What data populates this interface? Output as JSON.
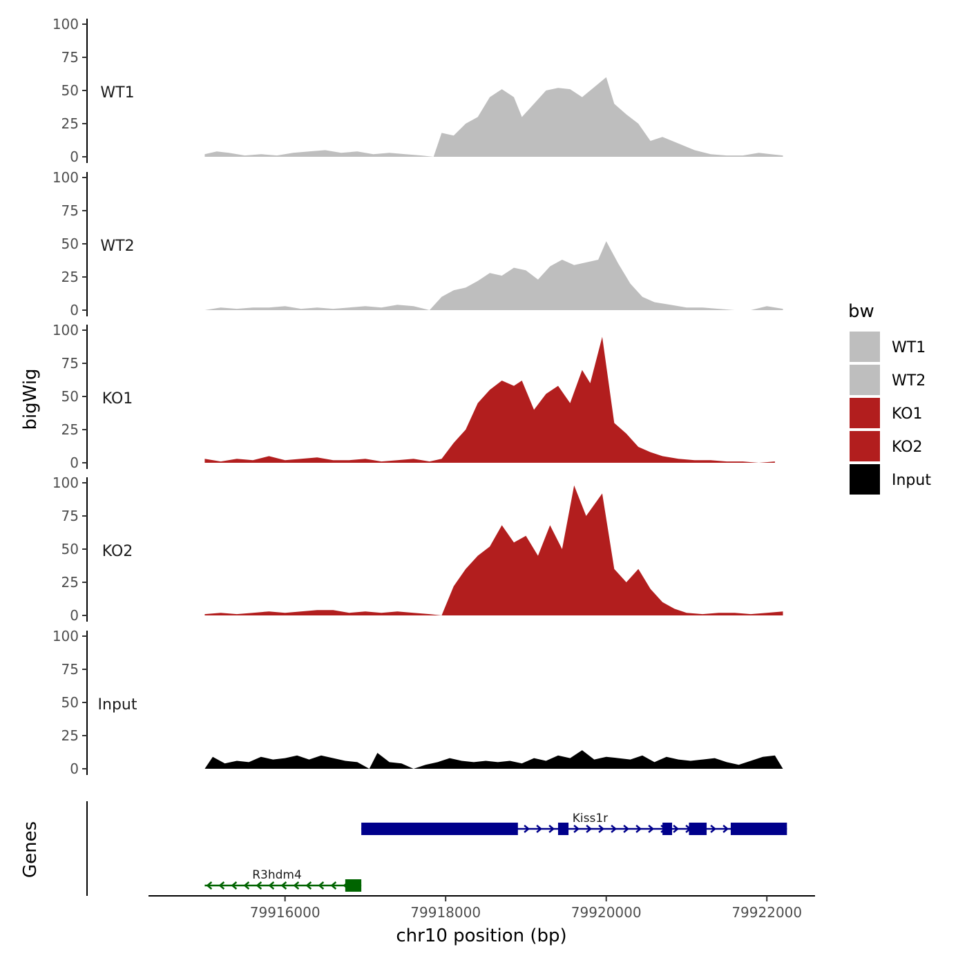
{
  "chart_data": {
    "type": "area",
    "ylabel": "bigWig",
    "xlabel": "chr10 position (bp)",
    "genes_panel_label": "Genes",
    "xlim": [
      79914300,
      79922600
    ],
    "x_ticks": [
      79916000,
      79918000,
      79920000,
      79922000
    ],
    "x_tick_labels": [
      "79916000",
      "79918000",
      "79920000",
      "79922000"
    ],
    "ylim": [
      0,
      100
    ],
    "y_ticks": [
      0,
      25,
      50,
      75,
      100
    ],
    "y_tick_labels": [
      "0",
      "25",
      "50",
      "75",
      "100"
    ],
    "legend": {
      "title": "bw",
      "placement": "right",
      "entries": [
        {
          "label": "WT1",
          "color": "#bebebe"
        },
        {
          "label": "WT2",
          "color": "#bebebe"
        },
        {
          "label": "KO1",
          "color": "#b21e1e"
        },
        {
          "label": "KO2",
          "color": "#b21e1e"
        },
        {
          "label": "Input",
          "color": "#000000"
        }
      ]
    },
    "series": [
      {
        "name": "WT1",
        "color": "#bebebe",
        "x": [
          79915000,
          79915150,
          79915300,
          79915500,
          79915700,
          79915900,
          79916100,
          79916300,
          79916500,
          79916700,
          79916900,
          79917100,
          79917300,
          79917500,
          79917700,
          79917850,
          79917950,
          79918100,
          79918250,
          79918400,
          79918550,
          79918700,
          79918850,
          79918950,
          79919100,
          79919250,
          79919400,
          79919550,
          79919700,
          79919900,
          79920000,
          79920100,
          79920250,
          79920400,
          79920550,
          79920700,
          79920900,
          79921100,
          79921300,
          79921500,
          79921700,
          79921900,
          79922050,
          79922200
        ],
        "y": [
          2,
          4,
          3,
          1,
          2,
          1,
          3,
          4,
          5,
          3,
          4,
          2,
          3,
          2,
          1,
          0,
          18,
          16,
          25,
          30,
          45,
          51,
          45,
          30,
          40,
          50,
          52,
          51,
          45,
          55,
          60,
          40,
          32,
          25,
          12,
          15,
          10,
          5,
          2,
          1,
          1,
          3,
          2,
          1
        ]
      },
      {
        "name": "WT2",
        "color": "#bebebe",
        "x": [
          79915000,
          79915200,
          79915400,
          79915600,
          79915800,
          79916000,
          79916200,
          79916400,
          79916600,
          79916800,
          79917000,
          79917200,
          79917400,
          79917600,
          79917800,
          79917950,
          79918100,
          79918250,
          79918400,
          79918550,
          79918700,
          79918850,
          79919000,
          79919150,
          79919300,
          79919450,
          79919600,
          79919750,
          79919900,
          79920000,
          79920150,
          79920300,
          79920450,
          79920600,
          79920800,
          79921000,
          79921200,
          79921400,
          79921600,
          79921800,
          79922000,
          79922200
        ],
        "y": [
          0,
          2,
          1,
          2,
          2,
          3,
          1,
          2,
          1,
          2,
          3,
          2,
          4,
          3,
          0,
          10,
          15,
          17,
          22,
          28,
          26,
          32,
          30,
          23,
          33,
          38,
          34,
          36,
          38,
          52,
          35,
          20,
          10,
          6,
          4,
          2,
          2,
          1,
          0,
          0,
          3,
          1
        ]
      },
      {
        "name": "KO1",
        "color": "#b21e1e",
        "x": [
          79915000,
          79915200,
          79915400,
          79915600,
          79915800,
          79916000,
          79916200,
          79916400,
          79916600,
          79916800,
          79917000,
          79917200,
          79917400,
          79917600,
          79917800,
          79917950,
          79918100,
          79918250,
          79918400,
          79918550,
          79918700,
          79918850,
          79918950,
          79919100,
          79919250,
          79919400,
          79919550,
          79919700,
          79919800,
          79919950,
          79920100,
          79920250,
          79920400,
          79920550,
          79920700,
          79920900,
          79921100,
          79921300,
          79921500,
          79921700,
          79921900,
          79922100
        ],
        "y": [
          3,
          1,
          3,
          2,
          5,
          2,
          3,
          4,
          2,
          2,
          3,
          1,
          2,
          3,
          1,
          3,
          15,
          25,
          45,
          55,
          62,
          58,
          62,
          40,
          52,
          58,
          45,
          70,
          60,
          95,
          30,
          22,
          12,
          8,
          5,
          3,
          2,
          2,
          1,
          1,
          0,
          1
        ]
      },
      {
        "name": "KO2",
        "color": "#b21e1e",
        "x": [
          79915000,
          79915200,
          79915400,
          79915600,
          79915800,
          79916000,
          79916200,
          79916400,
          79916600,
          79916800,
          79917000,
          79917200,
          79917400,
          79917600,
          79917800,
          79917950,
          79918100,
          79918250,
          79918400,
          79918550,
          79918700,
          79918850,
          79919000,
          79919150,
          79919300,
          79919450,
          79919600,
          79919750,
          79919950,
          79920100,
          79920250,
          79920400,
          79920550,
          79920700,
          79920850,
          79921000,
          79921200,
          79921400,
          79921600,
          79921800,
          79922000,
          79922200
        ],
        "y": [
          1,
          2,
          1,
          2,
          3,
          2,
          3,
          4,
          4,
          2,
          3,
          2,
          3,
          2,
          1,
          0,
          22,
          35,
          45,
          52,
          68,
          55,
          60,
          45,
          68,
          50,
          98,
          75,
          92,
          35,
          25,
          35,
          20,
          10,
          5,
          2,
          1,
          2,
          2,
          1,
          2,
          3
        ]
      },
      {
        "name": "Input",
        "color": "#000000",
        "x": [
          79915000,
          79915100,
          79915250,
          79915400,
          79915550,
          79915700,
          79915850,
          79916000,
          79916150,
          79916300,
          79916450,
          79916600,
          79916750,
          79916900,
          79917050,
          79917150,
          79917300,
          79917450,
          79917600,
          79917750,
          79917900,
          79918050,
          79918200,
          79918350,
          79918500,
          79918650,
          79918800,
          79918950,
          79919100,
          79919250,
          79919400,
          79919550,
          79919700,
          79919850,
          79920000,
          79920150,
          79920300,
          79920450,
          79920600,
          79920750,
          79920900,
          79921050,
          79921200,
          79921350,
          79921500,
          79921650,
          79921800,
          79921950,
          79922100,
          79922200
        ],
        "y": [
          0,
          9,
          4,
          6,
          5,
          9,
          7,
          8,
          10,
          7,
          10,
          8,
          6,
          5,
          0,
          12,
          5,
          4,
          0,
          3,
          5,
          8,
          6,
          5,
          6,
          5,
          6,
          4,
          8,
          6,
          10,
          8,
          14,
          7,
          9,
          8,
          7,
          10,
          5,
          9,
          7,
          6,
          7,
          8,
          5,
          3,
          6,
          9,
          10,
          0
        ]
      }
    ],
    "genes": [
      {
        "name": "Kiss1r",
        "strand": "+",
        "color": "#00008b",
        "start": 79916950,
        "end": 79922250,
        "exons": [
          [
            79916950,
            79918900
          ],
          [
            79919400,
            79919530
          ],
          [
            79920700,
            79920820
          ],
          [
            79921030,
            79921250
          ],
          [
            79921550,
            79922250
          ]
        ]
      },
      {
        "name": "R3hdm4",
        "strand": "-",
        "color": "#006400",
        "start": 79915000,
        "end": 79916950,
        "exons": [
          [
            79916750,
            79916950
          ]
        ]
      }
    ]
  }
}
